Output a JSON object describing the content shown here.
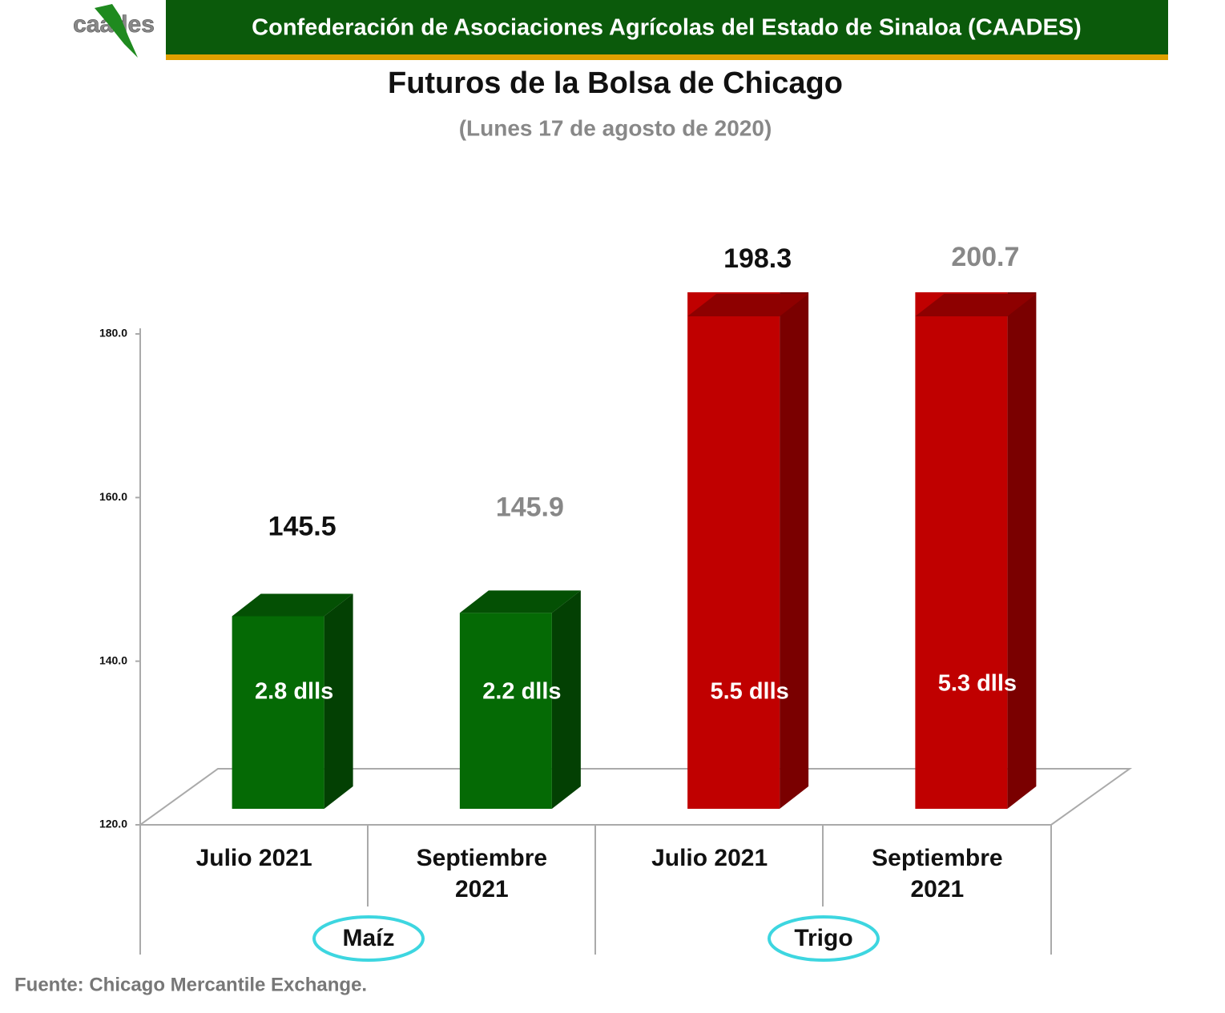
{
  "header": {
    "logo": "caades",
    "organization": "Confederación de Asociaciones Agrícolas del Estado de Sinaloa (CAADES)"
  },
  "chart_data": {
    "type": "bar3d",
    "title": "Futuros de la Bolsa de Chicago",
    "subtitle": "(Lunes 17 de agosto de 2020)",
    "categories": [
      "Julio 2021",
      "Septiembre 2021",
      "Julio 2021",
      "Septiembre 2021"
    ],
    "groups": [
      "Maíz",
      "Trigo"
    ],
    "values": [
      145.5,
      145.9,
      198.3,
      200.7
    ],
    "changes": [
      "2.8 dlls",
      "2.2 dlls",
      "5.5 dlls",
      "5.3 dlls"
    ],
    "colors": [
      "#056a05",
      "#056a05",
      "#c00000",
      "#c00000"
    ],
    "ylim": [
      120,
      180
    ],
    "yticks": [
      {
        "value": 120,
        "label": "120.0"
      },
      {
        "value": 140,
        "label": "140.0"
      },
      {
        "value": 160,
        "label": "160.0"
      },
      {
        "value": 180,
        "label": "180.0"
      }
    ],
    "source": "Fuente: Chicago Mercantile Exchange."
  }
}
